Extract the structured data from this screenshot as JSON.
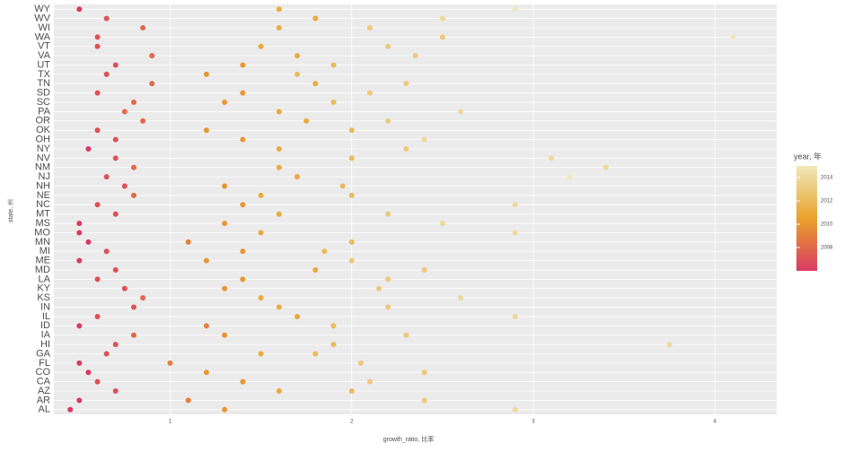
{
  "chart_data": {
    "type": "scatter",
    "x_label": "growth_ratio, 比率",
    "y_label": "state, 州",
    "categories": [
      "AL",
      "AR",
      "AZ",
      "CA",
      "CO",
      "FL",
      "GA",
      "HI",
      "IA",
      "ID",
      "IL",
      "IN",
      "KS",
      "KY",
      "LA",
      "MD",
      "ME",
      "MI",
      "MN",
      "MO",
      "MS",
      "MT",
      "NC",
      "NE",
      "NH",
      "NJ",
      "NM",
      "NV",
      "NY",
      "OH",
      "OK",
      "OR",
      "PA",
      "SC",
      "SD",
      "TN",
      "TX",
      "UT",
      "VA",
      "VT",
      "WA",
      "WI",
      "WV",
      "WY"
    ],
    "xlim": [
      0.36,
      4.34
    ],
    "xticks": [
      1,
      2,
      3,
      4
    ],
    "grid": true,
    "legend_title": "year, 年",
    "color_range": [
      2006,
      2015
    ],
    "color_ticks": [
      2008,
      2010,
      2012,
      2014
    ],
    "colormap": [
      "#d93a62",
      "#eaa22c",
      "#efe9b8"
    ],
    "y": [
      "AL",
      "AL",
      "AL",
      "AR",
      "AR",
      "AR",
      "AZ",
      "AZ",
      "AZ",
      "CA",
      "CA",
      "CA",
      "CO",
      "CO",
      "CO",
      "FL",
      "FL",
      "FL",
      "GA",
      "GA",
      "GA",
      "HI",
      "HI",
      "HI",
      "IA",
      "IA",
      "IA",
      "ID",
      "ID",
      "ID",
      "IL",
      "IL",
      "IL",
      "IN",
      "IN",
      "IN",
      "KS",
      "KS",
      "KS",
      "KY",
      "KY",
      "KY",
      "LA",
      "LA",
      "LA",
      "MD",
      "MD",
      "MD",
      "ME",
      "ME",
      "ME",
      "MI",
      "MI",
      "MI",
      "MN",
      "MN",
      "MN",
      "MO",
      "MO",
      "MO",
      "MS",
      "MS",
      "MS",
      "MT",
      "MT",
      "MT",
      "NC",
      "NC",
      "NC",
      "NE",
      "NE",
      "NE",
      "NH",
      "NH",
      "NH",
      "NJ",
      "NJ",
      "NJ",
      "NM",
      "NM",
      "NM",
      "NV",
      "NV",
      "NV",
      "NY",
      "NY",
      "NY",
      "OH",
      "OH",
      "OH",
      "OK",
      "OK",
      "OK",
      "OR",
      "OR",
      "OR",
      "PA",
      "PA",
      "PA",
      "SC",
      "SC",
      "SC",
      "SD",
      "SD",
      "SD",
      "TN",
      "TN",
      "TN",
      "TX",
      "TX",
      "TX",
      "UT",
      "UT",
      "UT",
      "VA",
      "VA",
      "VA",
      "VT",
      "VT",
      "VT",
      "WA",
      "WA",
      "WA",
      "WI",
      "WI",
      "WI",
      "WV",
      "WV",
      "WV",
      "WY",
      "WY",
      "WY"
    ],
    "x": [
      0.45,
      1.3,
      2.9,
      0.5,
      1.1,
      2.4,
      0.7,
      1.6,
      2.0,
      0.6,
      1.4,
      2.1,
      0.55,
      1.2,
      2.4,
      0.5,
      1.0,
      2.05,
      0.65,
      1.5,
      1.8,
      0.7,
      1.9,
      3.75,
      0.8,
      1.3,
      2.3,
      0.5,
      1.2,
      1.9,
      0.6,
      1.7,
      2.9,
      0.8,
      1.6,
      2.2,
      0.85,
      1.5,
      2.6,
      0.75,
      1.3,
      2.15,
      0.6,
      1.4,
      2.2,
      0.7,
      1.8,
      2.4,
      0.5,
      1.2,
      2.0,
      0.65,
      1.4,
      1.85,
      0.55,
      1.1,
      2.0,
      0.5,
      1.5,
      2.9,
      0.5,
      1.3,
      2.5,
      0.7,
      1.6,
      2.2,
      0.6,
      1.4,
      2.9,
      0.8,
      1.5,
      2.0,
      0.75,
      1.3,
      1.95,
      0.65,
      1.7,
      3.2,
      0.8,
      1.6,
      3.4,
      0.7,
      2.0,
      3.1,
      0.55,
      1.6,
      2.3,
      0.7,
      1.4,
      2.4,
      0.6,
      1.2,
      2.0,
      0.85,
      1.75,
      2.2,
      0.75,
      1.6,
      2.6,
      0.8,
      1.3,
      1.9,
      0.6,
      1.4,
      2.1,
      0.9,
      1.8,
      2.3,
      0.65,
      1.2,
      1.7,
      0.7,
      1.4,
      1.9,
      0.9,
      1.7,
      2.35,
      0.6,
      1.5,
      2.2,
      0.6,
      2.5,
      4.1,
      0.85,
      1.6,
      2.1,
      0.65,
      1.8,
      2.5,
      0.5,
      1.6,
      2.9
    ],
    "year": [
      2006,
      2010,
      2014,
      2006,
      2009,
      2013,
      2007,
      2011,
      2012,
      2007,
      2010,
      2013,
      2006,
      2010,
      2013,
      2006,
      2009,
      2013,
      2007,
      2011,
      2012,
      2007,
      2012,
      2014,
      2008,
      2010,
      2013,
      2006,
      2009,
      2012,
      2007,
      2011,
      2014,
      2007,
      2011,
      2013,
      2008,
      2011,
      2014,
      2007,
      2010,
      2013,
      2007,
      2010,
      2013,
      2007,
      2011,
      2013,
      2006,
      2010,
      2013,
      2007,
      2010,
      2012,
      2006,
      2009,
      2012,
      2006,
      2011,
      2014,
      2006,
      2010,
      2014,
      2007,
      2011,
      2013,
      2007,
      2010,
      2014,
      2008,
      2011,
      2012,
      2007,
      2010,
      2012,
      2007,
      2011,
      2015,
      2008,
      2011,
      2014,
      2007,
      2012,
      2014,
      2006,
      2011,
      2013,
      2007,
      2010,
      2014,
      2007,
      2010,
      2012,
      2008,
      2011,
      2013,
      2008,
      2011,
      2014,
      2008,
      2010,
      2012,
      2007,
      2010,
      2013,
      2008,
      2011,
      2013,
      2007,
      2010,
      2012,
      2007,
      2010,
      2012,
      2008,
      2011,
      2013,
      2007,
      2011,
      2013,
      2007,
      2013,
      2015,
      2008,
      2011,
      2013,
      2007,
      2011,
      2014,
      2006,
      2011,
      2015
    ]
  }
}
